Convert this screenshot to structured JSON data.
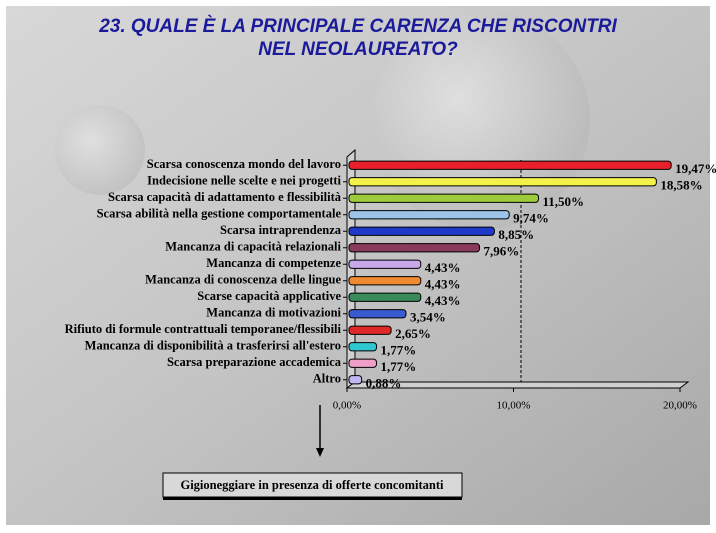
{
  "chart_data": {
    "type": "bar",
    "orientation": "horizontal",
    "title": [
      "23. QUALE È LA PRINCIPALE CARENZA CHE RISCONTRI",
      "NEL NEOLAUREATO?"
    ],
    "categories": [
      "Scarsa conoscenza mondo del lavoro",
      "Indecisione nelle scelte e nei progetti",
      "Scarsa capacità di adattamento e flessibilità",
      "Scarsa abilità nella gestione comportamentale",
      "Scarsa intraprendenza",
      "Mancanza di capacità relazionali",
      "Mancanza di competenze",
      "Mancanza di conoscenza delle lingue",
      "Scarse capacità applicative",
      "Mancanza di motivazioni",
      "Rifiuto di formule contrattuali temporanee/flessibili",
      "Mancanza di disponibilità a trasferirsi all'estero",
      "Scarsa preparazione accademica",
      "Altro"
    ],
    "values": [
      19.47,
      18.58,
      11.5,
      9.74,
      8.85,
      7.96,
      4.43,
      4.43,
      4.43,
      3.54,
      2.65,
      1.77,
      1.77,
      0.88
    ],
    "value_labels": [
      "19,47%",
      "18,58%",
      "11,50%",
      "9,74%",
      "8,85%",
      "7,96%",
      "4,43%",
      "4,43%",
      "4,43%",
      "3,54%",
      "2,65%",
      "1,77%",
      "1,77%",
      "0,88%"
    ],
    "colors": [
      "#e8202a",
      "#f4f24a",
      "#9ccc3c",
      "#9cc4e8",
      "#2038c8",
      "#8a3a5a",
      "#c8a8e8",
      "#f08a30",
      "#3a8a5a",
      "#3a5ad0",
      "#e02828",
      "#30c8d0",
      "#f0a0c8",
      "#c0b8f0"
    ],
    "xlim": [
      0,
      20
    ],
    "xticks": [
      {
        "value": 0,
        "label": "0,00%"
      },
      {
        "value": 10,
        "label": "10,00%"
      },
      {
        "value": 20,
        "label": "20,00%"
      }
    ],
    "annotation": "Gigioneggiare in presenza di offerte concomitanti"
  }
}
